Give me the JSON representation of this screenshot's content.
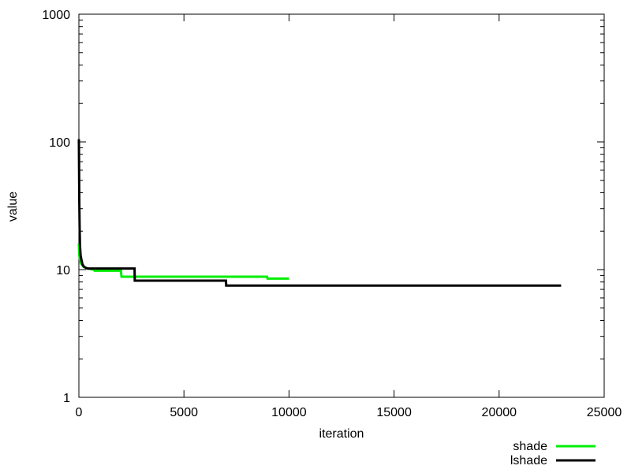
{
  "chart_data": {
    "type": "line",
    "title": "",
    "xlabel": "iteration",
    "ylabel": "value",
    "xlim": [
      0,
      25000
    ],
    "ylim": [
      1,
      1000
    ],
    "y_scale": "log",
    "x_ticks": [
      0,
      5000,
      10000,
      15000,
      20000,
      25000
    ],
    "y_ticks": [
      1,
      10,
      100,
      1000
    ],
    "x_tick_labels": [
      "0",
      "5000",
      "10000",
      "15000",
      "20000",
      "25000"
    ],
    "y_tick_labels": [
      "1",
      "10",
      "100",
      "1000"
    ],
    "grid": false,
    "legend": "bottom-right, outside plot",
    "series": [
      {
        "name": "shade",
        "color": "#00ee00",
        "points": [
          [
            0,
            16
          ],
          [
            20,
            13
          ],
          [
            50,
            12
          ],
          [
            100,
            11.2
          ],
          [
            200,
            10.6
          ],
          [
            400,
            10.2
          ],
          [
            700,
            10.0
          ],
          [
            750,
            9.8
          ],
          [
            2000,
            9.8
          ],
          [
            2030,
            8.8
          ],
          [
            8950,
            8.8
          ],
          [
            8980,
            8.5
          ],
          [
            10000,
            8.5
          ]
        ]
      },
      {
        "name": "lshade",
        "color": "#000000",
        "points": [
          [
            0,
            105
          ],
          [
            10,
            60
          ],
          [
            20,
            35
          ],
          [
            35,
            22
          ],
          [
            50,
            16
          ],
          [
            80,
            13
          ],
          [
            120,
            12
          ],
          [
            170,
            11
          ],
          [
            250,
            10.5
          ],
          [
            400,
            10.2
          ],
          [
            2650,
            10.2
          ],
          [
            2660,
            8.2
          ],
          [
            7000,
            8.2
          ],
          [
            7010,
            7.5
          ],
          [
            22950,
            7.5
          ]
        ]
      }
    ]
  }
}
